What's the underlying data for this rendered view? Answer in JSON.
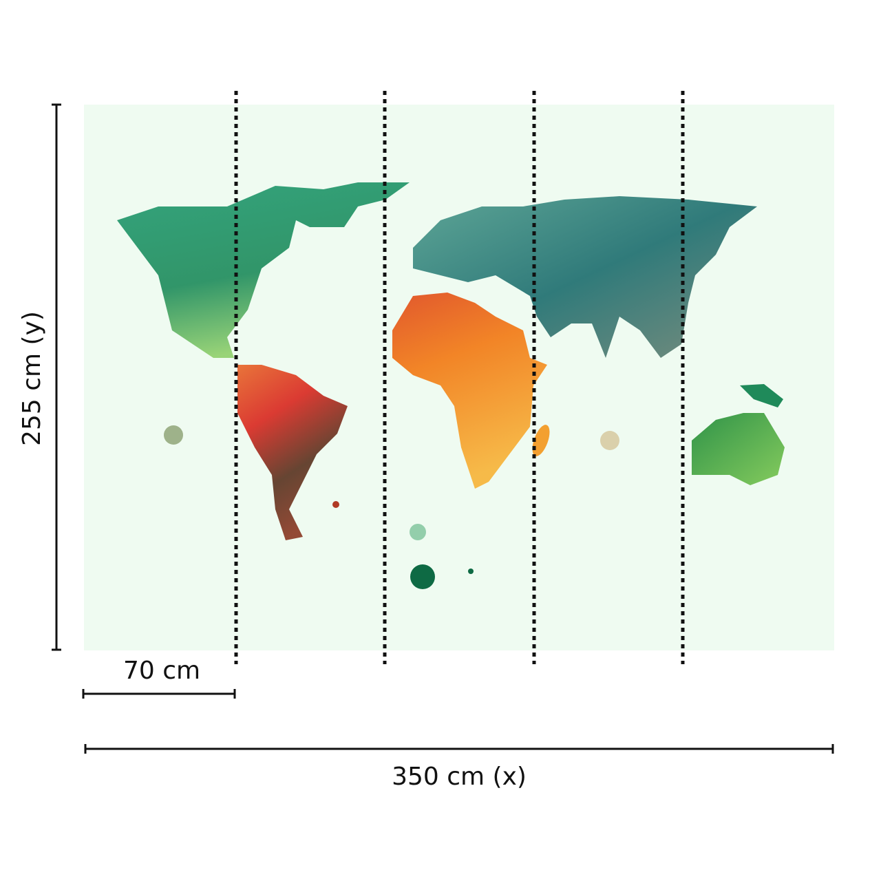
{
  "dimensions": {
    "height": "255 cm (y)",
    "panel_width": "70 cm",
    "width": "350 cm (x)"
  }
}
